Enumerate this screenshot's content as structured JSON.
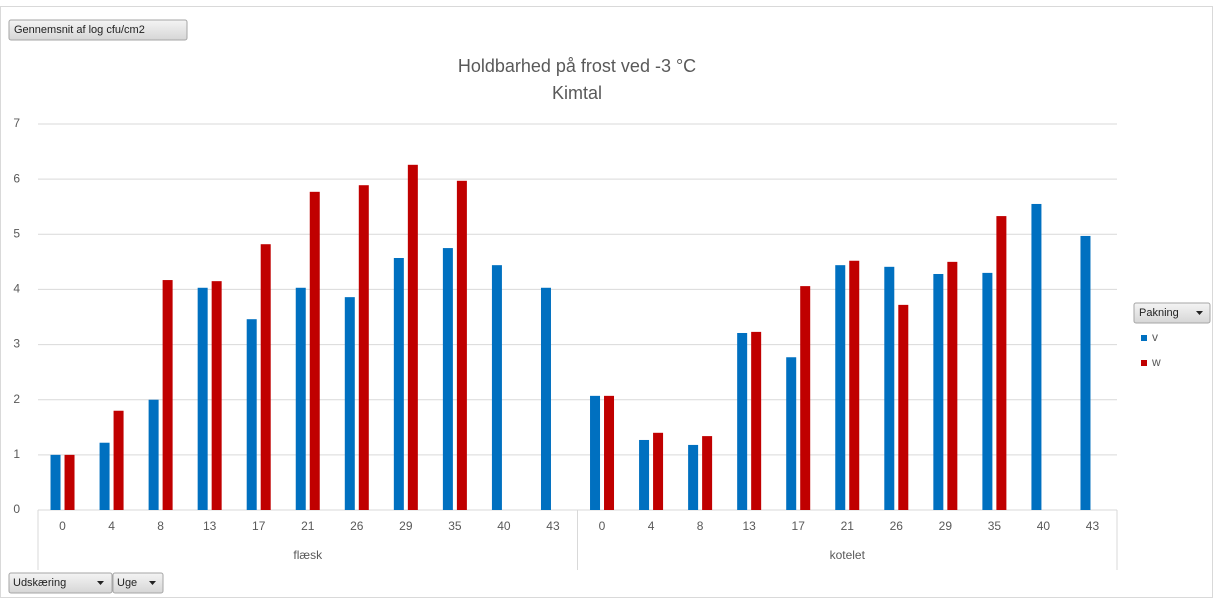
{
  "chart_data": {
    "type": "bar",
    "title": "Holdbarhed på frost ved -3 °C",
    "subtitle": "Kimtal",
    "value_field": "Gennemsnit af log cfu/cm2",
    "legend_title": "Pakning",
    "row_fields": [
      "Udskæring",
      "Uge"
    ],
    "groups": [
      "flæsk",
      "kotelet"
    ],
    "categories": [
      "0",
      "4",
      "8",
      "13",
      "17",
      "21",
      "26",
      "29",
      "35",
      "40",
      "43",
      "0",
      "4",
      "8",
      "13",
      "17",
      "21",
      "26",
      "29",
      "35",
      "40",
      "43"
    ],
    "series": [
      {
        "name": "v",
        "color": "#0070c0",
        "values": [
          1.0,
          1.22,
          2.0,
          4.03,
          3.46,
          4.03,
          3.86,
          4.57,
          4.75,
          4.44,
          4.03,
          2.07,
          1.27,
          1.18,
          3.21,
          2.77,
          4.44,
          4.41,
          4.28,
          4.3,
          5.55,
          4.97
        ]
      },
      {
        "name": "w",
        "color": "#c00000",
        "values": [
          1.0,
          1.8,
          4.17,
          4.15,
          4.82,
          5.77,
          5.89,
          6.26,
          5.97,
          null,
          null,
          2.07,
          1.4,
          1.34,
          3.23,
          4.06,
          4.52,
          3.72,
          4.5,
          5.33,
          null,
          null
        ]
      }
    ],
    "ylim": [
      0,
      7
    ],
    "yticks": [
      0,
      1,
      2,
      3,
      4,
      5,
      6,
      7
    ],
    "grid": true,
    "legend": "right"
  }
}
